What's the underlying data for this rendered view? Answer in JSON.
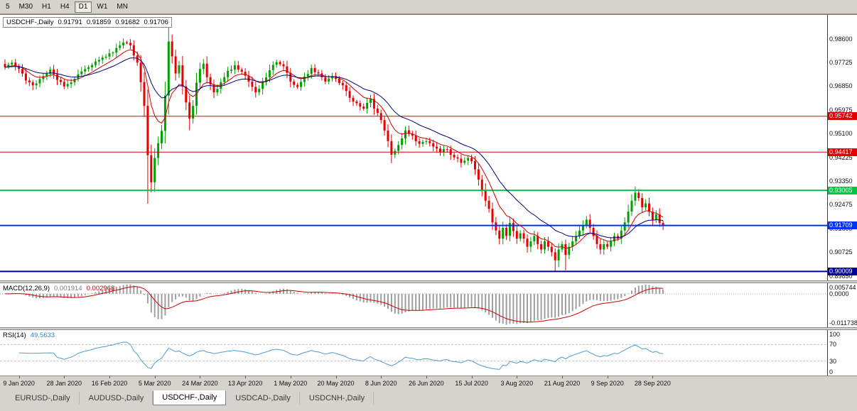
{
  "toolbar": {
    "timeframes": [
      "5",
      "M30",
      "H1",
      "H4",
      "D1",
      "W1",
      "MN"
    ],
    "active": "D1"
  },
  "chart": {
    "legend": {
      "symbol": "USDCHF-,Daily",
      "open": "0.91791",
      "high": "0.91859",
      "low": "0.91682",
      "close": "0.91706"
    },
    "price_axis_labels": [
      0.986,
      0.97725,
      0.9685,
      0.95975,
      0.951,
      0.94225,
      0.9335,
      0.92475,
      0.916,
      0.90725,
      0.8985
    ],
    "hlines": [
      {
        "price": 0.95742,
        "color": "#e00000",
        "width": 1
      },
      {
        "price": 0.94417,
        "color": "#e00000",
        "width": 1
      },
      {
        "price": 0.93005,
        "color": "#00c846",
        "width": 2
      },
      {
        "price": 0.91709,
        "color": "#0033ee",
        "width": 2
      },
      {
        "price": 0.90009,
        "color": "#000099",
        "width": 2
      }
    ],
    "colors": {
      "up": "#00a000",
      "down": "#e60000",
      "ma_fast": "#d40000",
      "ma_slow": "#000080",
      "rsi": "#4f9bd5",
      "macd_hist": "#9e9e9e",
      "macd_signal": "#cc0000"
    }
  },
  "macd": {
    "label": "MACD(12,26,9)",
    "value_main": "0.001914",
    "value_signal": "0.002968",
    "axis": [
      "0.005744",
      "0.0000",
      "-0.011738"
    ]
  },
  "rsi": {
    "label": "RSI(14)",
    "value": "49.5633",
    "axis": [
      100,
      70,
      30,
      0
    ],
    "levels": [
      70,
      30
    ]
  },
  "date_axis": [
    "9 Jan 2020",
    "28 Jan 2020",
    "16 Feb 2020",
    "5 Mar 2020",
    "24 Mar 2020",
    "13 Apr 2020",
    "1 May 2020",
    "20 May 2020",
    "8 Jun 2020",
    "26 Jun 2020",
    "15 Jul 2020",
    "3 Aug 2020",
    "21 Aug 2020",
    "9 Sep 2020",
    "28 Sep 2020"
  ],
  "tabs": [
    {
      "label": "EURUSD-,Daily"
    },
    {
      "label": "AUDUSD-,Daily"
    },
    {
      "label": "USDCHF-,Daily"
    },
    {
      "label": "USDCAD-,Daily"
    },
    {
      "label": "USDCNH-,Daily"
    }
  ],
  "active_tab": "USDCHF-,Daily",
  "chart_data": {
    "type": "candlestick",
    "symbol": "USDCHF",
    "timeframe": "Daily",
    "last_ohlc": {
      "open": 0.91791,
      "high": 0.91859,
      "low": 0.91682,
      "close": 0.91706
    },
    "price_range": [
      0.8968,
      0.9948
    ],
    "bar_count": 190,
    "bar_step": 4.9,
    "first_label_bar": 4,
    "label_step": 13,
    "seed": 42,
    "noise": 0.0013,
    "ma_fast_period": 9,
    "ma_slow_period": 21,
    "macd_params": [
      12,
      26,
      9
    ],
    "rsi_period": 14,
    "close_anchors": [
      [
        0,
        0.9755
      ],
      [
        2,
        0.9772
      ],
      [
        4,
        0.9748
      ],
      [
        6,
        0.9706
      ],
      [
        8,
        0.9688
      ],
      [
        11,
        0.9722
      ],
      [
        13,
        0.9746
      ],
      [
        15,
        0.9708
      ],
      [
        17,
        0.9684
      ],
      [
        20,
        0.9712
      ],
      [
        23,
        0.9748
      ],
      [
        26,
        0.9776
      ],
      [
        29,
        0.9794
      ],
      [
        32,
        0.9826
      ],
      [
        34,
        0.9846
      ],
      [
        36,
        0.9836
      ],
      [
        38,
        0.9772
      ],
      [
        39,
        0.97
      ],
      [
        40,
        0.9612
      ],
      [
        41,
        0.943
      ],
      [
        42,
        0.933
      ],
      [
        43,
        0.942
      ],
      [
        44,
        0.9474
      ],
      [
        45,
        0.952
      ],
      [
        46,
        0.965
      ],
      [
        47,
        0.985
      ],
      [
        48,
        0.9795
      ],
      [
        49,
        0.9732
      ],
      [
        50,
        0.9762
      ],
      [
        51,
        0.9684
      ],
      [
        52,
        0.9625
      ],
      [
        53,
        0.9565
      ],
      [
        54,
        0.9612
      ],
      [
        55,
        0.9698
      ],
      [
        56,
        0.9748
      ],
      [
        57,
        0.9768
      ],
      [
        58,
        0.9718
      ],
      [
        60,
        0.9662
      ],
      [
        62,
        0.97
      ],
      [
        64,
        0.9742
      ],
      [
        66,
        0.9762
      ],
      [
        68,
        0.9738
      ],
      [
        70,
        0.9702
      ],
      [
        72,
        0.9662
      ],
      [
        74,
        0.97
      ],
      [
        76,
        0.9744
      ],
      [
        78,
        0.9774
      ],
      [
        80,
        0.9758
      ],
      [
        82,
        0.9702
      ],
      [
        84,
        0.9682
      ],
      [
        86,
        0.972
      ],
      [
        88,
        0.9752
      ],
      [
        90,
        0.9732
      ],
      [
        92,
        0.9702
      ],
      [
        94,
        0.9722
      ],
      [
        95,
        0.9712
      ],
      [
        97,
        0.9688
      ],
      [
        99,
        0.9642
      ],
      [
        101,
        0.9622
      ],
      [
        103,
        0.9602
      ],
      [
        105,
        0.9638
      ],
      [
        106,
        0.9602
      ],
      [
        108,
        0.956
      ],
      [
        110,
        0.9482
      ],
      [
        111,
        0.9432
      ],
      [
        113,
        0.9468
      ],
      [
        115,
        0.9522
      ],
      [
        117,
        0.9502
      ],
      [
        119,
        0.9472
      ],
      [
        121,
        0.9482
      ],
      [
        123,
        0.9462
      ],
      [
        125,
        0.9442
      ],
      [
        127,
        0.9452
      ],
      [
        129,
        0.9422
      ],
      [
        131,
        0.9402
      ],
      [
        133,
        0.942
      ],
      [
        134,
        0.9408
      ],
      [
        135,
        0.9378
      ],
      [
        136,
        0.934
      ],
      [
        137,
        0.9302
      ],
      [
        138,
        0.9262
      ],
      [
        139,
        0.9232
      ],
      [
        140,
        0.9182
      ],
      [
        141,
        0.9152
      ],
      [
        142,
        0.9122
      ],
      [
        143,
        0.9162
      ],
      [
        144,
        0.9132
      ],
      [
        145,
        0.918
      ],
      [
        146,
        0.915
      ],
      [
        147,
        0.9122
      ],
      [
        148,
        0.9142
      ],
      [
        149,
        0.9122
      ],
      [
        150,
        0.9092
      ],
      [
        151,
        0.9112
      ],
      [
        152,
        0.9132
      ],
      [
        153,
        0.9102
      ],
      [
        154,
        0.9082
      ],
      [
        155,
        0.9112
      ],
      [
        156,
        0.9092
      ],
      [
        157,
        0.9072
      ],
      [
        158,
        0.9042
      ],
      [
        159,
        0.9082
      ],
      [
        160,
        0.9102
      ],
      [
        161,
        0.9062
      ],
      [
        162,
        0.9092
      ],
      [
        163,
        0.9112
      ],
      [
        164,
        0.9132
      ],
      [
        165,
        0.9152
      ],
      [
        166,
        0.9172
      ],
      [
        167,
        0.9192
      ],
      [
        168,
        0.9162
      ],
      [
        169,
        0.9132
      ],
      [
        170,
        0.9102
      ],
      [
        171,
        0.9082
      ],
      [
        172,
        0.9102
      ],
      [
        173,
        0.9092
      ],
      [
        174,
        0.9112
      ],
      [
        175,
        0.9132
      ],
      [
        176,
        0.9122
      ],
      [
        177,
        0.9152
      ],
      [
        178,
        0.9182
      ],
      [
        179,
        0.9222
      ],
      [
        180,
        0.9262
      ],
      [
        181,
        0.9292
      ],
      [
        182,
        0.9272
      ],
      [
        183,
        0.9238
      ],
      [
        184,
        0.9252
      ],
      [
        185,
        0.9222
      ],
      [
        186,
        0.9192
      ],
      [
        187,
        0.9212
      ],
      [
        188,
        0.918
      ],
      [
        189,
        0.91706
      ]
    ],
    "wick_overrides": [
      {
        "bar": 34,
        "high": 0.9861
      },
      {
        "bar": 41,
        "low": 0.9251
      },
      {
        "bar": 47,
        "high": 0.9901
      },
      {
        "bar": 53,
        "low": 0.9522
      },
      {
        "bar": 111,
        "low": 0.9401
      },
      {
        "bar": 142,
        "low": 0.9101
      },
      {
        "bar": 158,
        "low": 0.9002
      },
      {
        "bar": 161,
        "low": 0.9006
      },
      {
        "bar": 181,
        "high": 0.9299
      }
    ]
  }
}
